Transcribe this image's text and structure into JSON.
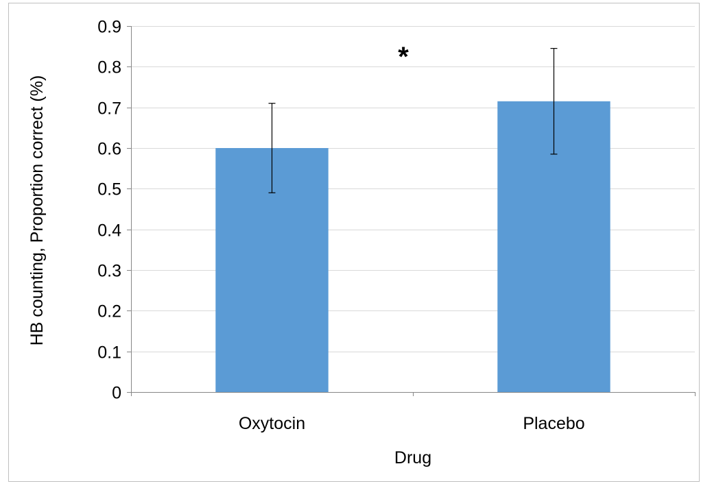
{
  "chart_data": {
    "type": "bar",
    "categories": [
      "Oxytocin",
      "Placebo"
    ],
    "values": [
      0.6,
      0.715
    ],
    "error_bars": [
      {
        "low": 0.49,
        "high": 0.71
      },
      {
        "low": 0.585,
        "high": 0.845
      }
    ],
    "xlabel": "Drug",
    "ylabel": "HB counting, Proportion correct (%)",
    "ylim": [
      0,
      0.9
    ],
    "yticks": [
      0,
      0.1,
      0.2,
      0.3,
      0.4,
      0.5,
      0.6,
      0.7,
      0.8,
      0.9
    ],
    "ytick_labels": [
      "0",
      "0.1",
      "0.2",
      "0.3",
      "0.4",
      "0.5",
      "0.6",
      "0.7",
      "0.8",
      "0.9"
    ],
    "grid": true,
    "legend": "none",
    "annotation": "*",
    "colors": {
      "bar": "#5b9bd5",
      "grid": "#d9d9d9",
      "axis": "#868686",
      "frame": "#bfbfbf"
    }
  }
}
